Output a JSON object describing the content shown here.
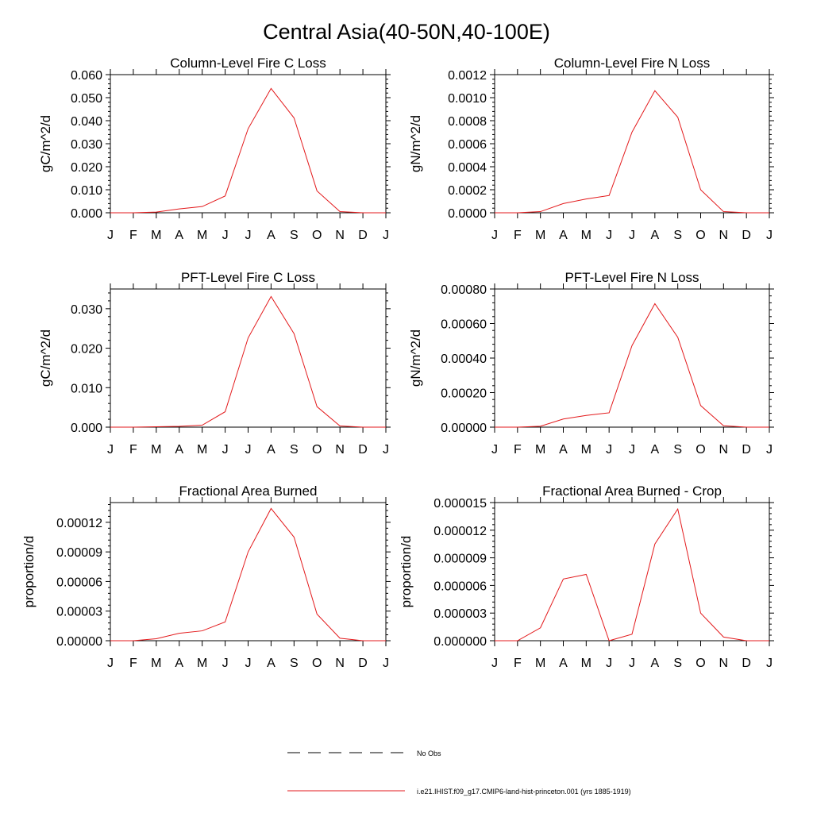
{
  "figure": {
    "title": "Central Asia(40-50N,40-100E)"
  },
  "legend": {
    "entries": [
      {
        "label": "No Obs",
        "style": "dashed",
        "color": "#000000"
      },
      {
        "label": "i.e21.IHIST.f09_g17.CMIP6-land-hist-princeton.001 (yrs 1885-1919)",
        "style": "solid",
        "color": "#e31a1c"
      }
    ]
  },
  "colors": {
    "series": "#e31a1c",
    "axes": "#000000"
  },
  "chart_data": [
    {
      "type": "line",
      "title": "Column-Level Fire C Loss",
      "xlabel": "",
      "ylabel": "gC/m^2/d",
      "categories": [
        "J",
        "F",
        "M",
        "A",
        "M",
        "J",
        "J",
        "A",
        "S",
        "O",
        "N",
        "D",
        "J"
      ],
      "ylim": [
        0,
        0.06
      ],
      "yticks": [
        0,
        0.01,
        0.02,
        0.03,
        0.04,
        0.05,
        0.06
      ],
      "yticklabels": [
        "0.000",
        "0.010",
        "0.020",
        "0.030",
        "0.040",
        "0.050",
        "0.060"
      ],
      "grid": false,
      "series": [
        {
          "values": [
            0.0,
            0.0,
            0.0003,
            0.0017,
            0.0027,
            0.0073,
            0.0365,
            0.054,
            0.0412,
            0.0095,
            0.0005,
            0.0,
            0.0
          ]
        }
      ]
    },
    {
      "type": "line",
      "title": "Column-Level Fire N Loss",
      "xlabel": "",
      "ylabel": "gN/m^2/d",
      "categories": [
        "J",
        "F",
        "M",
        "A",
        "M",
        "J",
        "J",
        "A",
        "S",
        "O",
        "N",
        "D",
        "J"
      ],
      "ylim": [
        0,
        0.0012
      ],
      "yticks": [
        0,
        0.0002,
        0.0004,
        0.0006,
        0.0008,
        0.001,
        0.0012
      ],
      "yticklabels": [
        "0.0000",
        "0.0002",
        "0.0004",
        "0.0006",
        "0.0008",
        "0.0010",
        "0.0012"
      ],
      "grid": false,
      "series": [
        {
          "values": [
            0.0,
            0.0,
            1e-05,
            8e-05,
            0.00012,
            0.00015,
            0.0007,
            0.00106,
            0.00083,
            0.0002,
            1e-05,
            0.0,
            0.0
          ]
        }
      ]
    },
    {
      "type": "line",
      "title": "PFT-Level Fire C Loss",
      "xlabel": "",
      "ylabel": "gC/m^2/d",
      "categories": [
        "J",
        "F",
        "M",
        "A",
        "M",
        "J",
        "J",
        "A",
        "S",
        "O",
        "N",
        "D",
        "J"
      ],
      "ylim": [
        0,
        0.035
      ],
      "yticks": [
        0,
        0.01,
        0.02,
        0.03
      ],
      "yticklabels": [
        "0.000",
        "0.010",
        "0.020",
        "0.030"
      ],
      "grid": false,
      "series": [
        {
          "values": [
            0.0,
            0.0,
            0.0001,
            0.0002,
            0.0005,
            0.0039,
            0.0226,
            0.0331,
            0.0237,
            0.0052,
            0.0003,
            0.0,
            0.0
          ]
        }
      ]
    },
    {
      "type": "line",
      "title": "PFT-Level Fire N Loss",
      "xlabel": "",
      "ylabel": "gN/m^2/d",
      "categories": [
        "J",
        "F",
        "M",
        "A",
        "M",
        "J",
        "J",
        "A",
        "S",
        "O",
        "N",
        "D",
        "J"
      ],
      "ylim": [
        0,
        0.0008
      ],
      "yticks": [
        0,
        0.0002,
        0.0004,
        0.0006,
        0.0008
      ],
      "yticklabels": [
        "0.00000",
        "0.00020",
        "0.00040",
        "0.00060",
        "0.00080"
      ],
      "grid": false,
      "series": [
        {
          "values": [
            0.0,
            0.0,
            5e-06,
            4.7e-05,
            6.8e-05,
            8.3e-05,
            0.000472,
            0.000715,
            0.00052,
            0.000125,
            8e-06,
            0.0,
            0.0
          ]
        }
      ]
    },
    {
      "type": "line",
      "title": "Fractional Area Burned",
      "xlabel": "",
      "ylabel": "proportion/d",
      "categories": [
        "J",
        "F",
        "M",
        "A",
        "M",
        "J",
        "J",
        "A",
        "S",
        "O",
        "N",
        "D",
        "J"
      ],
      "ylim": [
        0,
        0.00014
      ],
      "yticks": [
        0,
        3e-05,
        6e-05,
        9e-05,
        0.00012
      ],
      "yticklabels": [
        "0.00000",
        "0.00003",
        "0.00006",
        "0.00009",
        "0.00012"
      ],
      "grid": false,
      "series": [
        {
          "values": [
            0.0,
            0.0,
            2e-06,
            7.5e-06,
            1e-05,
            1.9e-05,
            9e-05,
            0.000134,
            0.000105,
            2.7e-05,
            2.5e-06,
            0.0,
            0.0
          ]
        }
      ]
    },
    {
      "type": "line",
      "title": "Fractional Area Burned - Crop",
      "xlabel": "",
      "ylabel": "proportion/d",
      "categories": [
        "J",
        "F",
        "M",
        "A",
        "M",
        "J",
        "J",
        "A",
        "S",
        "O",
        "N",
        "D",
        "J"
      ],
      "ylim": [
        0,
        1.5e-05
      ],
      "yticks": [
        0,
        3e-06,
        6e-06,
        9e-06,
        1.2e-05,
        1.5e-05
      ],
      "yticklabels": [
        "0.000000",
        "0.000003",
        "0.000006",
        "0.000009",
        "0.000012",
        "0.000015"
      ],
      "grid": false,
      "series": [
        {
          "values": [
            0.0,
            0.0,
            1.4e-06,
            6.7e-06,
            7.2e-06,
            0.0,
            7e-07,
            1.05e-05,
            1.43e-05,
            3e-06,
            4e-07,
            0.0,
            0.0
          ]
        }
      ]
    }
  ]
}
